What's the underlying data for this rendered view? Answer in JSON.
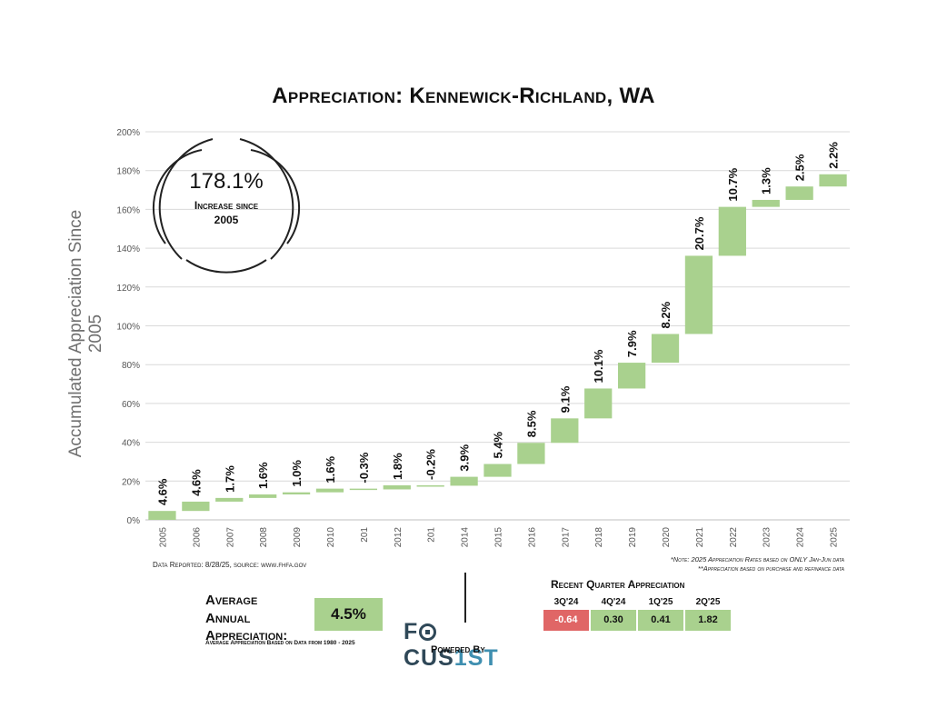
{
  "title": "Appreciation: Kennewick-Richland, WA",
  "side_label": "Accumulated Appreciation Since 2005",
  "circle": {
    "big": "178.1%",
    "small_line1": "Increase since",
    "small_line2": "2005"
  },
  "notes": {
    "left": "Data Reported: 8/28/25, source: www.fhfa.gov",
    "right_line1": "*Note: 2025 Appreciation Rates based on ONLY Jan-Jun data",
    "right_line2": "**Appreciation based on purchase and refinance data"
  },
  "average": {
    "label_line1": "Average",
    "label_line2": "Annual",
    "label_line3": "Appreciation:",
    "value": "4.5%",
    "note": "Average Appreciation Based on Data from 1980 - 2025"
  },
  "logo": {
    "part1": "F",
    "part2": "CUS",
    "part3": "1ST",
    "powered": "Powered By"
  },
  "recent_quarter": {
    "title": "Recent Quarter Appreciation",
    "quarters": [
      {
        "label": "3Q'24",
        "value": "-0.64",
        "color": "#e06666"
      },
      {
        "label": "4Q'24",
        "value": "0.30",
        "color": "#a9d18e"
      },
      {
        "label": "1Q'25",
        "value": "0.41",
        "color": "#a9d18e"
      },
      {
        "label": "2Q'25",
        "value": "1.82",
        "color": "#a9d18e"
      }
    ]
  },
  "chart_data": {
    "type": "bar",
    "subtype": "waterfall",
    "ylim": [
      0,
      200
    ],
    "yticks": [
      0,
      20,
      40,
      60,
      80,
      100,
      120,
      140,
      160,
      180,
      200
    ],
    "ytick_labels": [
      "0%",
      "20%",
      "40%",
      "60%",
      "80%",
      "100%",
      "120%",
      "140%",
      "160%",
      "180%",
      "200%"
    ],
    "grid": true,
    "bar_color": "#a9d18e",
    "categories": [
      "2005",
      "2006",
      "2007",
      "2008",
      "2009",
      "2010",
      "201",
      "2012",
      "201",
      "2014",
      "2015",
      "2016",
      "2017",
      "2018",
      "2019",
      "2020",
      "2021",
      "2022",
      "2023",
      "2024",
      "2025"
    ],
    "bar_start": [
      0,
      4.6,
      9.4,
      11.3,
      13.1,
      14.2,
      16.1,
      15.7,
      17.8,
      17.6,
      22.2,
      28.8,
      39.7,
      52.3,
      67.7,
      81.0,
      95.8,
      136.1,
      161.3,
      164.9,
      171.8
    ],
    "bar_end": [
      4.6,
      9.4,
      11.3,
      13.1,
      14.2,
      16.1,
      15.7,
      17.8,
      17.6,
      22.2,
      28.8,
      39.7,
      52.3,
      67.7,
      81.0,
      95.8,
      136.1,
      161.3,
      164.9,
      171.8,
      178.1
    ],
    "data_labels": [
      "4.6%",
      "4.6%",
      "1.7%",
      "1.6%",
      "1.0%",
      "1.6%",
      "-0.3%",
      "1.8%",
      "-0.2%",
      "3.9%",
      "5.4%",
      "8.5%",
      "9.1%",
      "10.1%",
      "7.9%",
      "8.2%",
      "20.7%",
      "10.7%",
      "1.3%",
      "2.5%",
      "2.2%"
    ]
  }
}
